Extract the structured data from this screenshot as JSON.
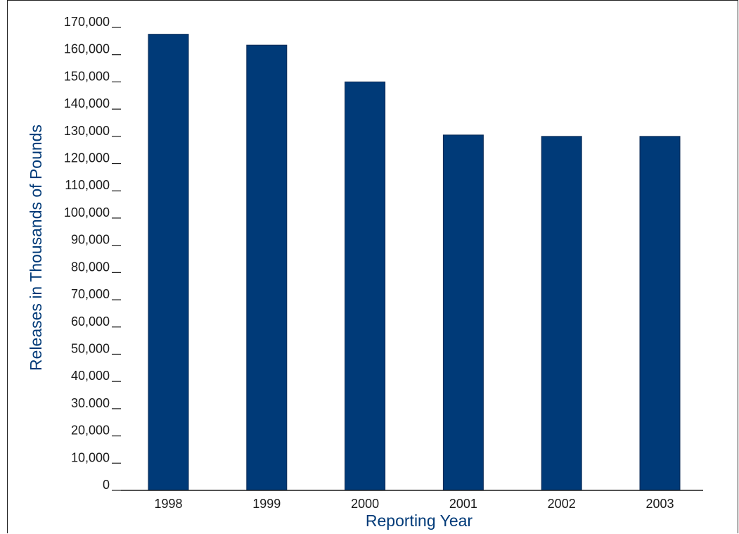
{
  "chart_data": {
    "type": "bar",
    "categories": [
      "1998",
      "1999",
      "2000",
      "2001",
      "2002",
      "2003"
    ],
    "values": [
      167500,
      163500,
      150000,
      130500,
      130000,
      130000
    ],
    "ylim": [
      0,
      170000
    ],
    "yticks": [
      0,
      10000,
      20000,
      30000,
      40000,
      50000,
      60000,
      70000,
      80000,
      90000,
      100000,
      110000,
      120000,
      130000,
      140000,
      150000,
      160000,
      170000
    ],
    "ytick_labels": [
      "0",
      "10,000",
      "20,000",
      "30.000",
      "40,000",
      "50,000",
      "60,000",
      "70,000",
      "80,000",
      "90,000",
      "100,000",
      "110,000",
      "120,000",
      "130,000",
      "140,000",
      "150,000",
      "160,000",
      "170,000"
    ],
    "xlabel": "Reporting Year",
    "ylabel": "Releases in Thousands of Pounds",
    "grid": false,
    "legend": false,
    "colors": {
      "bar": "#003a78",
      "axis": "#1a1a1a",
      "title": "#003a78"
    }
  }
}
